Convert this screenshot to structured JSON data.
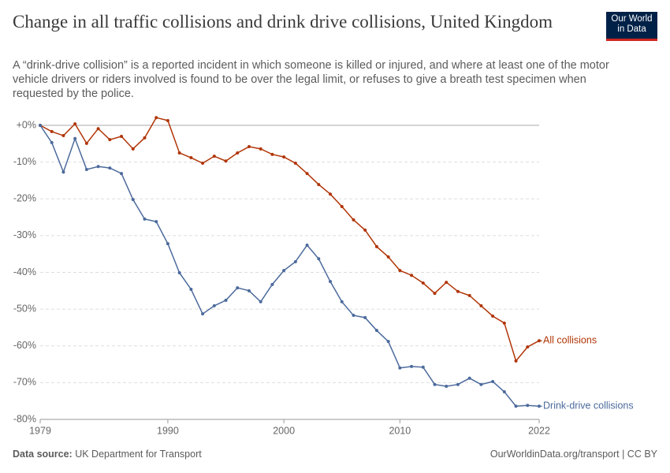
{
  "header": {
    "title": "Change in all traffic collisions and drink drive collisions, United Kingdom",
    "subtitle": "A “drink-drive collision” is a reported incident in which someone is killed or injured, and where at least one of the motor vehicle drivers or riders involved is found to be over the legal limit, or refuses to give a breath test specimen when requested by the police.",
    "logo_lines": [
      "Our World",
      "in Data"
    ]
  },
  "chart_data": {
    "type": "line",
    "x": [
      1979,
      1980,
      1981,
      1982,
      1983,
      1984,
      1985,
      1986,
      1987,
      1988,
      1989,
      1990,
      1991,
      1992,
      1993,
      1994,
      1995,
      1996,
      1997,
      1998,
      1999,
      2000,
      2001,
      2002,
      2003,
      2004,
      2005,
      2006,
      2007,
      2008,
      2009,
      2010,
      2011,
      2012,
      2013,
      2014,
      2015,
      2016,
      2017,
      2018,
      2019,
      2020,
      2021,
      2022
    ],
    "series": [
      {
        "name": "All collisions",
        "color": "#b13507",
        "values": [
          0,
          -1.7,
          -2.8,
          0.4,
          -4.9,
          -0.9,
          -3.9,
          -3.0,
          -6.4,
          -3.4,
          2.1,
          1.3,
          -7.5,
          -8.8,
          -10.3,
          -8.4,
          -9.7,
          -7.5,
          -5.8,
          -6.4,
          -7.9,
          -8.6,
          -10.3,
          -13.1,
          -16.1,
          -18.7,
          -22.1,
          -25.7,
          -28.5,
          -33.0,
          -35.8,
          -39.5,
          -40.8,
          -42.9,
          -45.7,
          -42.7,
          -45.2,
          -46.3,
          -49.1,
          -51.9,
          -53.8,
          -64.1,
          -60.3,
          -58.6
        ]
      },
      {
        "name": "Drink-drive collisions",
        "color": "#4c6a9c",
        "values": [
          0,
          -4.7,
          -12.7,
          -3.6,
          -12.0,
          -11.2,
          -11.6,
          -13.1,
          -20.2,
          -25.5,
          -26.2,
          -32.2,
          -40.1,
          -44.6,
          -51.3,
          -49.1,
          -47.6,
          -44.2,
          -45.0,
          -48.0,
          -43.3,
          -39.5,
          -37.1,
          -32.6,
          -36.3,
          -42.5,
          -48.0,
          -51.7,
          -52.3,
          -55.8,
          -58.8,
          -66.0,
          -65.6,
          -65.8,
          -70.5,
          -71.0,
          -70.5,
          -68.8,
          -70.5,
          -69.7,
          -72.5,
          -76.4,
          -76.2,
          -76.4
        ]
      }
    ],
    "xlim": [
      1979,
      2022
    ],
    "xticks": [
      1979,
      1990,
      2000,
      2010,
      2022
    ],
    "ylim": [
      -80,
      0
    ],
    "yticks": [
      {
        "value": 0,
        "label": "+0%"
      },
      {
        "value": -10,
        "label": "-10%"
      },
      {
        "value": -20,
        "label": "-20%"
      },
      {
        "value": -30,
        "label": "-30%"
      },
      {
        "value": -40,
        "label": "-40%"
      },
      {
        "value": -50,
        "label": "-50%"
      },
      {
        "value": -60,
        "label": "-60%"
      },
      {
        "value": -70,
        "label": "-70%"
      },
      {
        "value": -80,
        "label": "-80%"
      }
    ],
    "grid": true,
    "legend": "end"
  },
  "footer": {
    "source_label": "Data source:",
    "source": "UK Department for Transport",
    "credit": "OurWorldinData.org/transport | CC BY"
  }
}
